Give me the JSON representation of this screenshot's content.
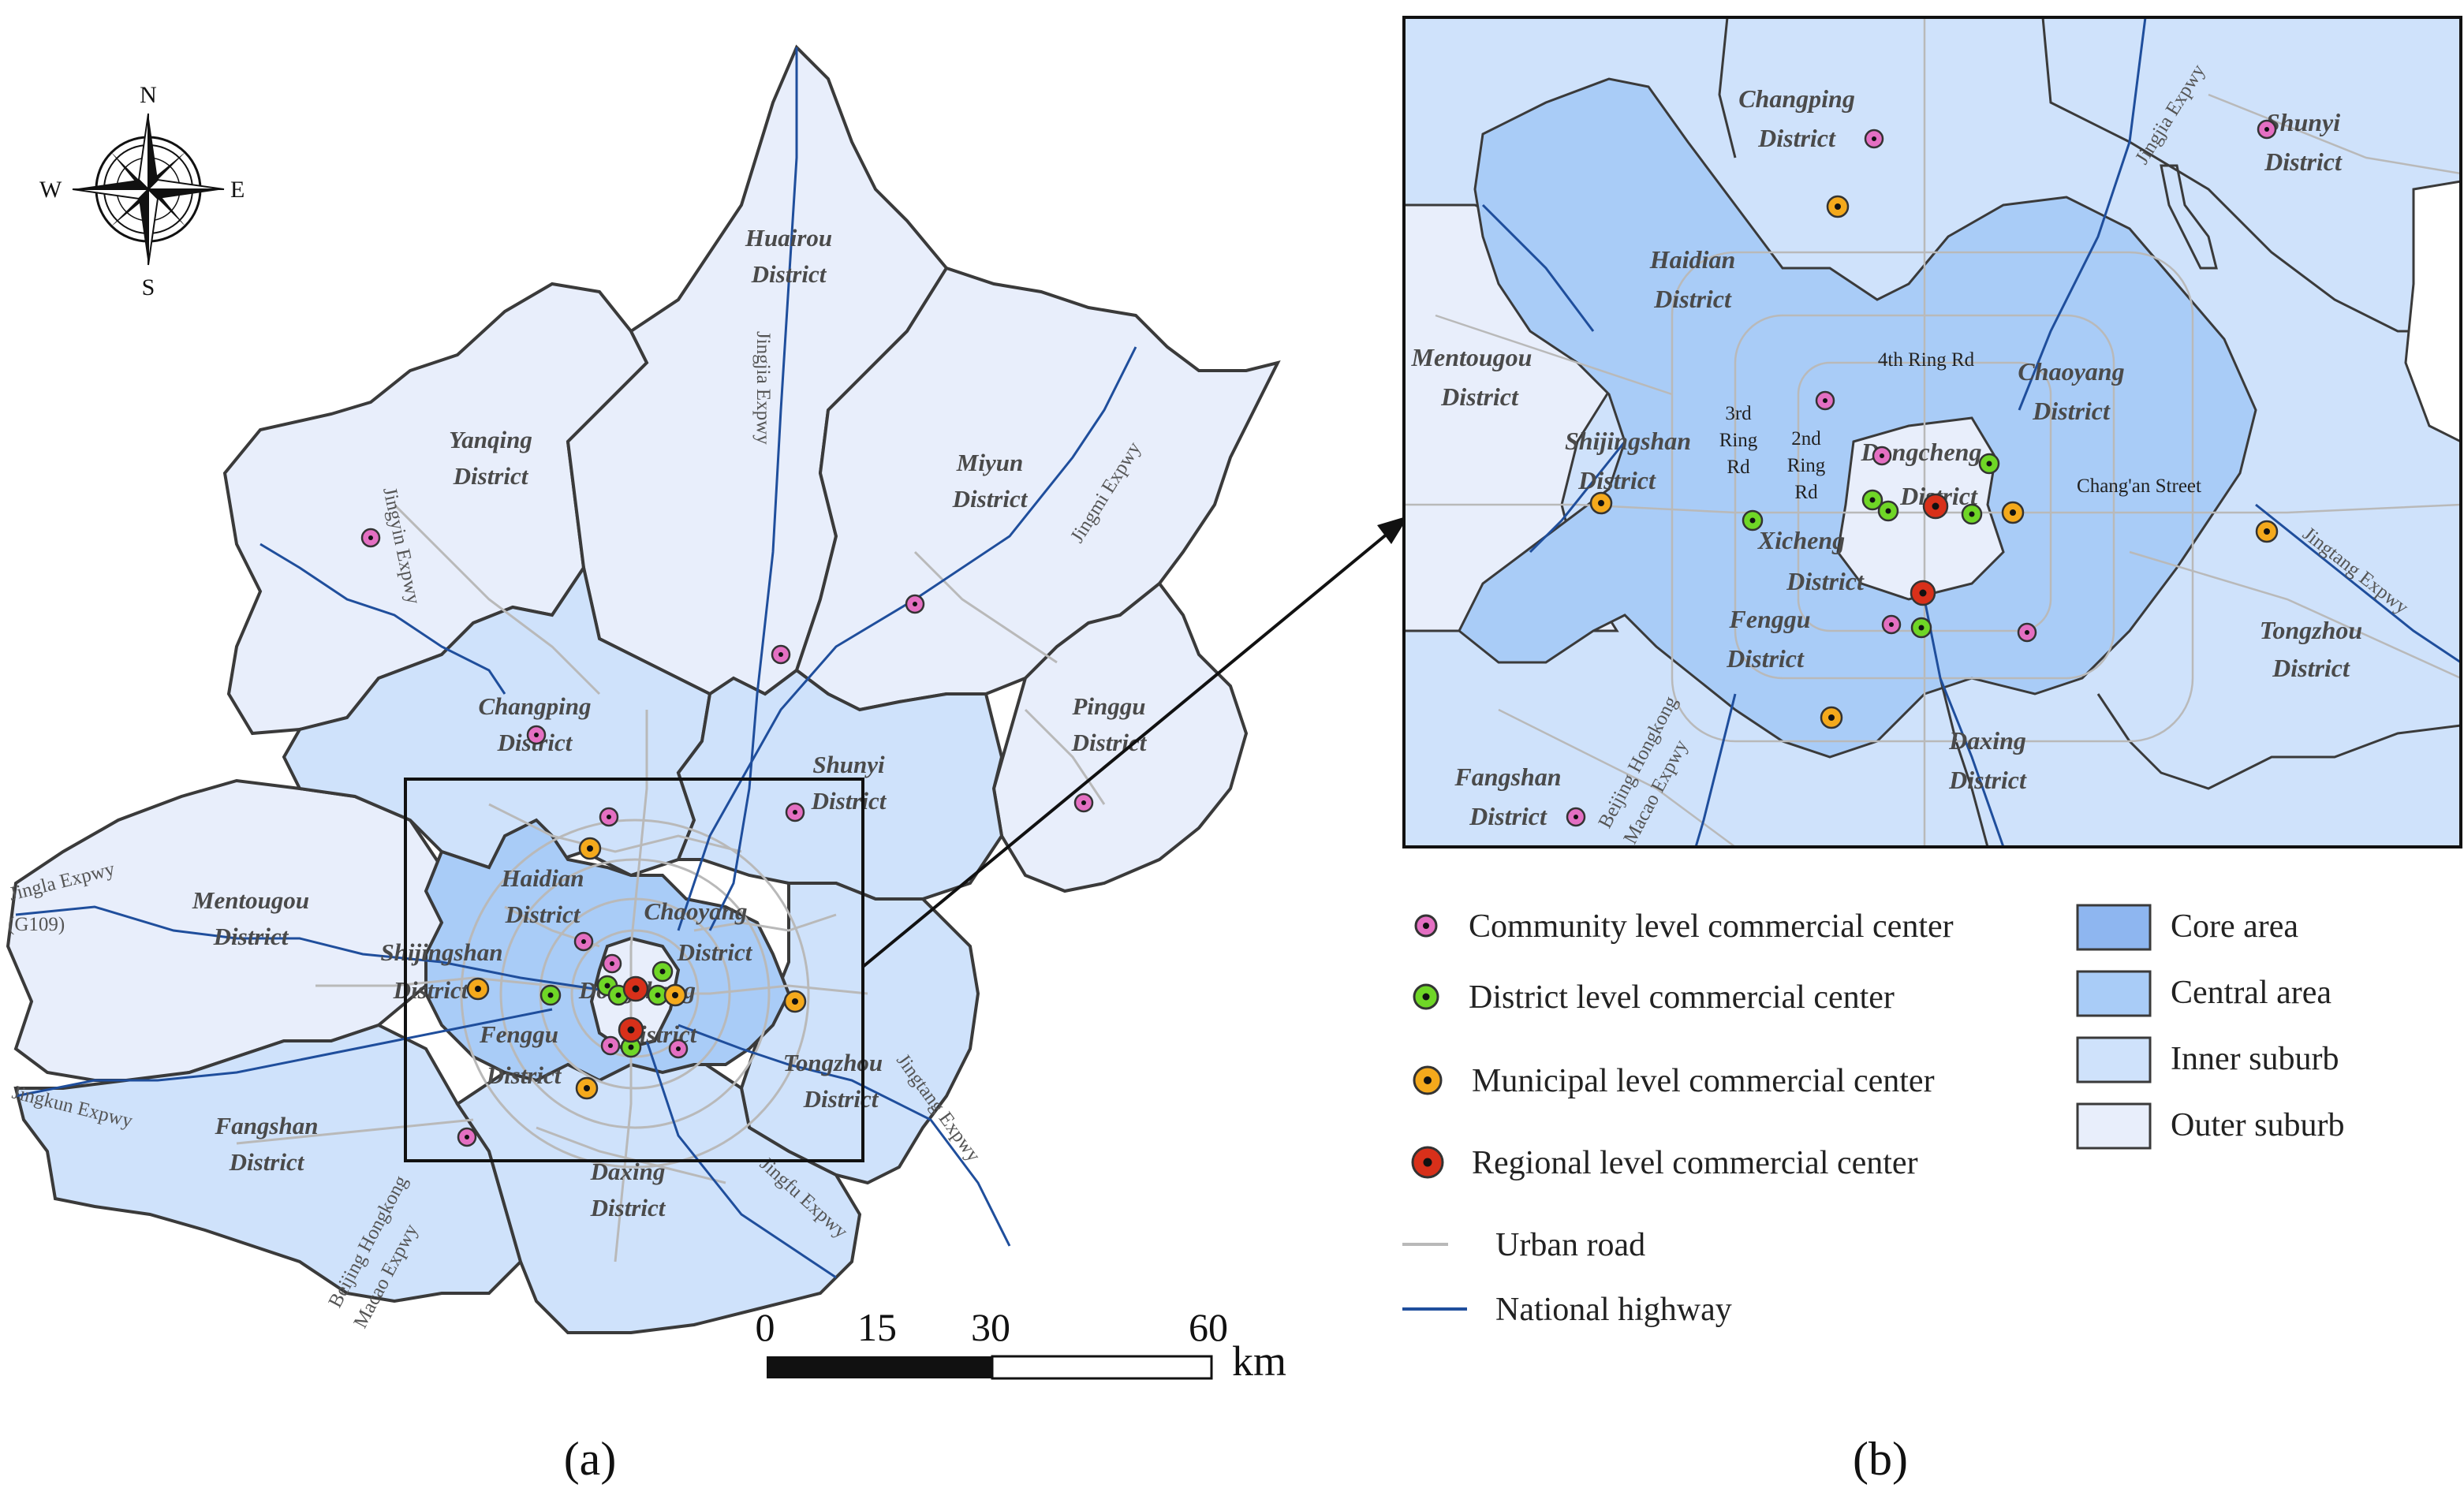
{
  "colors": {
    "core": "#8eb6f0",
    "central": "#a9ccf7",
    "inner": "#cfe2fb",
    "outer": "#e8eefb",
    "border": "#3a3a3a",
    "urban_road": "#b9b9b9",
    "highway": "#1f4e9c",
    "community": "#e46fc2",
    "district": "#6fd626",
    "municipal": "#f4a91c",
    "regional": "#d8301a"
  },
  "compass": {
    "n": "N",
    "s": "S",
    "e": "E",
    "w": "W"
  },
  "map_a": {
    "districts": [
      {
        "label": "Huairou",
        "label2": "District"
      },
      {
        "label": "Yanqing",
        "label2": "District"
      },
      {
        "label": "Miyun",
        "label2": "District"
      },
      {
        "label": "Changping",
        "label2": "District"
      },
      {
        "label": "Shunyi",
        "label2": "District"
      },
      {
        "label": "Pinggu",
        "label2": "District"
      },
      {
        "label": "Mentougou",
        "label2": "District"
      },
      {
        "label": "Haidian",
        "label2": "District"
      },
      {
        "label": "Chaoyang",
        "label2": "District"
      },
      {
        "label": "Shijingshan",
        "label2": "District"
      },
      {
        "label": "Dongcheng",
        "label2": "District"
      },
      {
        "label": "Fenggu",
        "label2": "District"
      },
      {
        "label": "Tongzhou",
        "label2": "District"
      },
      {
        "label": "Fangshan",
        "label2": "District"
      },
      {
        "label": "Daxing",
        "label2": "District"
      }
    ],
    "roads": [
      "Jingjia Expwy",
      "Jingmi Expwy",
      "Jingyin Expwy",
      "Jingla Expwy",
      "(G109)",
      "Jingkun Expwy",
      "Beijing Hongkong",
      "Macao Expwy",
      "Jingfu Expwy",
      "Jingtang Expwy"
    ]
  },
  "map_b": {
    "districts": [
      {
        "label": "Changping",
        "label2": "District"
      },
      {
        "label": "Shunyi",
        "label2": "District"
      },
      {
        "label": "Haidian",
        "label2": "District"
      },
      {
        "label": "Mentougou",
        "label2": "District"
      },
      {
        "label": "Chaoyang",
        "label2": "District"
      },
      {
        "label": "Shijingshan",
        "label2": "District"
      },
      {
        "label": "Dongcheng",
        "label2": "District"
      },
      {
        "label": "Xicheng",
        "label2": "District"
      },
      {
        "label": "Fenggu",
        "label2": "District"
      },
      {
        "label": "Tongzhou",
        "label2": "District"
      },
      {
        "label": "Daxing",
        "label2": "District"
      },
      {
        "label": "Fangshan",
        "label2": "District"
      }
    ],
    "roads": [
      "Jingjia Expwy",
      "4th Ring Rd",
      "3rd",
      "Ring",
      "Rd",
      "2nd",
      "Ring",
      "Rd",
      "Chang'an Street",
      "Jingtang Expwy",
      "Beijing Hongkong",
      "Macao Expwy"
    ]
  },
  "scale_bar": {
    "ticks": [
      "0",
      "15",
      "30",
      "60"
    ],
    "unit": "km"
  },
  "legend": {
    "community": "Community level commercial center",
    "district": "District level commercial center",
    "municipal": "Municipal level commercial center",
    "regional": "Regional level commercial center",
    "urban_road": "Urban road",
    "highway": "National highway",
    "core": "Core area",
    "central": "Central area",
    "inner": "Inner suburb",
    "outer": "Outer suburb"
  },
  "panels": {
    "a": "(a)",
    "b": "(b)"
  }
}
